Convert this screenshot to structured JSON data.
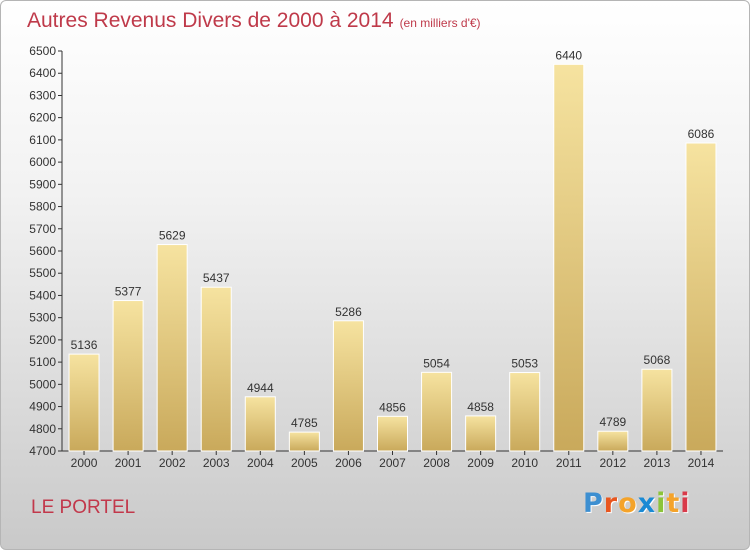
{
  "header": {
    "title": "Autres Revenus Divers de 2000 à 2014",
    "subtitle": "(en milliers d'€)"
  },
  "footer": {
    "location": "LE PORTEL",
    "logo_letters": [
      "P",
      "r",
      "o",
      "x",
      "i",
      "t",
      "i"
    ],
    "logo_colors": [
      "#3d8fd1",
      "#e8561f",
      "#f4a32a",
      "#1a8ad4",
      "#8cc43a",
      "#f4a32a",
      "#d93a4a"
    ]
  },
  "colors": {
    "bar_light": "#f6e3a0",
    "bar_dark": "#c9a95b",
    "axis": "#333333",
    "title": "#bf3a4a"
  },
  "chart_data": {
    "type": "bar",
    "title": "Autres Revenus Divers de 2000 à 2014",
    "subtitle": "(en milliers d'€)",
    "categories": [
      "2000",
      "2001",
      "2002",
      "2003",
      "2004",
      "2005",
      "2006",
      "2007",
      "2008",
      "2009",
      "2010",
      "2011",
      "2012",
      "2013",
      "2014"
    ],
    "values": [
      5136,
      5377,
      5629,
      5437,
      4944,
      4785,
      5286,
      4856,
      5054,
      4858,
      5053,
      6440,
      4789,
      5068,
      6086
    ],
    "ylim": [
      4700,
      6500
    ],
    "yticks": [
      4700,
      4800,
      4900,
      5000,
      5100,
      5200,
      5300,
      5400,
      5500,
      5600,
      5700,
      5800,
      5900,
      6000,
      6100,
      6200,
      6300,
      6400,
      6500
    ],
    "data_labels": true,
    "grid": false
  }
}
